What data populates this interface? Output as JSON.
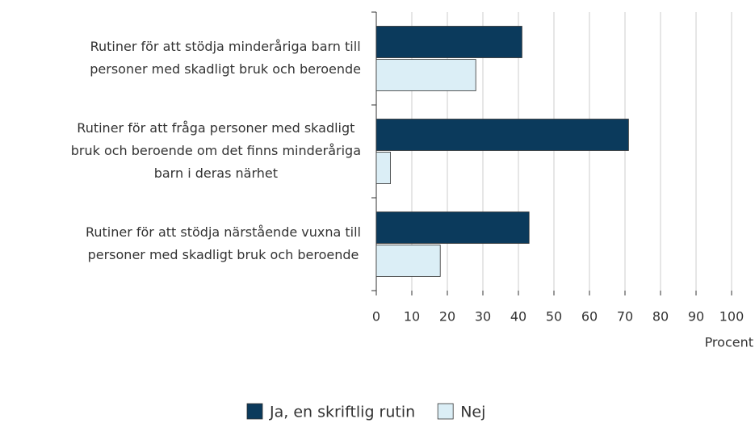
{
  "chart_data": {
    "type": "bar",
    "orientation": "horizontal",
    "categories": [
      [
        "Rutiner för att stödja minderåriga barn till",
        "personer med skadligt bruk och beroende"
      ],
      [
        "Rutiner för att fråga personer med skadligt",
        "bruk och beroende om det finns minderåriga",
        "barn i deras närhet"
      ],
      [
        "Rutiner för att stödja närstående vuxna till",
        "personer med skadligt bruk och beroende"
      ]
    ],
    "series": [
      {
        "name": "Ja, en skriftlig rutin",
        "color": "#0b3a5c",
        "values": [
          41,
          71,
          43
        ]
      },
      {
        "name": "Nej",
        "color": "#dbeef6",
        "values": [
          28,
          4,
          18
        ]
      }
    ],
    "xlabel": "Procent",
    "xlim": [
      0,
      100
    ],
    "xticks": [
      0,
      10,
      20,
      30,
      40,
      50,
      60,
      70,
      80,
      90,
      100
    ],
    "grid": true,
    "legend": "bottom"
  }
}
